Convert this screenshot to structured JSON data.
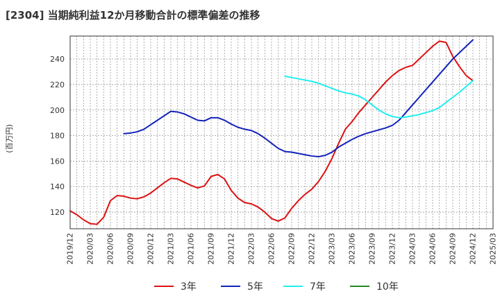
{
  "chart_data": {
    "type": "line",
    "title": "[2304]  当期純利益12か月移動合計の標準偏差の推移",
    "ylabel": "(百万円)",
    "xlabel": "",
    "ylim": [
      107,
      258
    ],
    "yticks": [
      120,
      140,
      160,
      180,
      200,
      220,
      240
    ],
    "xticks": [
      "2019/12",
      "2020/03",
      "2020/06",
      "2020/09",
      "2020/12",
      "2021/03",
      "2021/06",
      "2021/09",
      "2021/12",
      "2022/03",
      "2022/06",
      "2022/09",
      "2022/12",
      "2023/03",
      "2023/06",
      "2023/09",
      "2023/12",
      "2024/03",
      "2024/06",
      "2024/09",
      "2024/12",
      "2025/03"
    ],
    "grid": true,
    "legend_position": "bottom",
    "series": [
      {
        "name": "3年",
        "color": "#dd1111",
        "x": [
          "2019/12",
          "2020/01",
          "2020/02",
          "2020/03",
          "2020/04",
          "2020/05",
          "2020/06",
          "2020/07",
          "2020/08",
          "2020/09",
          "2020/10",
          "2020/11",
          "2020/12",
          "2021/01",
          "2021/02",
          "2021/03",
          "2021/04",
          "2021/05",
          "2021/06",
          "2021/07",
          "2021/08",
          "2021/09",
          "2021/10",
          "2021/11",
          "2021/12",
          "2022/01",
          "2022/02",
          "2022/03",
          "2022/04",
          "2022/05",
          "2022/06",
          "2022/07",
          "2022/08",
          "2022/09",
          "2022/10",
          "2022/11",
          "2022/12",
          "2023/01",
          "2023/02",
          "2023/03",
          "2023/04",
          "2023/05",
          "2023/06",
          "2023/07",
          "2023/08",
          "2023/09",
          "2023/10",
          "2023/11",
          "2023/12",
          "2024/01",
          "2024/02",
          "2024/03",
          "2024/04",
          "2024/05",
          "2024/06",
          "2024/07",
          "2024/08",
          "2024/09",
          "2024/10",
          "2024/11",
          "2024/12"
        ],
        "values": [
          121,
          118,
          114,
          111,
          110.5,
          116,
          129,
          133,
          132.5,
          131,
          130.5,
          132,
          135,
          139,
          143,
          146.5,
          146,
          143.5,
          141,
          139,
          140.5,
          148,
          149.5,
          146,
          137,
          131,
          127.5,
          126.5,
          124,
          120,
          115,
          113,
          115.5,
          123,
          129,
          134,
          138,
          144,
          152,
          162,
          174,
          185,
          191,
          198,
          204,
          210,
          216,
          222,
          227,
          231,
          233.5,
          235,
          240,
          245,
          250,
          254,
          253,
          242,
          234,
          227,
          223
        ]
      },
      {
        "name": "5年",
        "color": "#1122bb",
        "x": [
          "2020/08",
          "2020/09",
          "2020/10",
          "2020/11",
          "2020/12",
          "2021/01",
          "2021/02",
          "2021/03",
          "2021/04",
          "2021/05",
          "2021/06",
          "2021/07",
          "2021/08",
          "2021/09",
          "2021/10",
          "2021/11",
          "2021/12",
          "2022/01",
          "2022/02",
          "2022/03",
          "2022/04",
          "2022/05",
          "2022/06",
          "2022/07",
          "2022/08",
          "2022/09",
          "2022/10",
          "2022/11",
          "2022/12",
          "2023/01",
          "2023/02",
          "2023/03",
          "2023/04",
          "2023/05",
          "2023/06",
          "2023/07",
          "2023/08",
          "2023/09",
          "2023/10",
          "2023/11",
          "2023/12",
          "2024/01",
          "2024/02",
          "2024/03",
          "2024/04",
          "2024/05",
          "2024/06",
          "2024/07",
          "2024/08",
          "2024/09",
          "2024/10",
          "2024/11",
          "2024/12"
        ],
        "values": [
          181.5,
          182,
          183,
          185,
          188.5,
          192,
          195.5,
          199,
          198.5,
          197,
          194.5,
          192,
          191.5,
          194,
          194,
          192,
          189,
          186.5,
          185,
          184,
          181.5,
          178,
          174,
          170,
          167.5,
          167,
          166,
          165,
          164,
          163.5,
          164.5,
          167,
          171,
          174,
          177,
          179.5,
          181.5,
          183,
          184.5,
          186,
          188,
          192,
          198,
          204,
          210,
          216,
          222,
          228,
          234,
          240,
          245,
          250,
          255
        ]
      },
      {
        "name": "7年",
        "color": "#22eeee",
        "x": [
          "2022/08",
          "2022/09",
          "2022/10",
          "2022/11",
          "2022/12",
          "2023/01",
          "2023/02",
          "2023/03",
          "2023/04",
          "2023/05",
          "2023/06",
          "2023/07",
          "2023/08",
          "2023/09",
          "2023/10",
          "2023/11",
          "2023/12",
          "2024/01",
          "2024/02",
          "2024/03",
          "2024/04",
          "2024/05",
          "2024/06",
          "2024/07",
          "2024/08",
          "2024/09",
          "2024/10",
          "2024/11",
          "2024/12"
        ],
        "values": [
          226.5,
          225.5,
          224.5,
          223.5,
          222.5,
          221,
          219,
          217,
          215,
          213.5,
          212.5,
          211,
          208,
          204,
          200,
          197,
          195,
          194,
          194.5,
          195.5,
          196.5,
          198,
          199.5,
          202,
          206,
          210,
          214,
          218.5,
          223
        ]
      },
      {
        "name": "10年",
        "color": "#228822",
        "x": [],
        "values": []
      }
    ]
  }
}
